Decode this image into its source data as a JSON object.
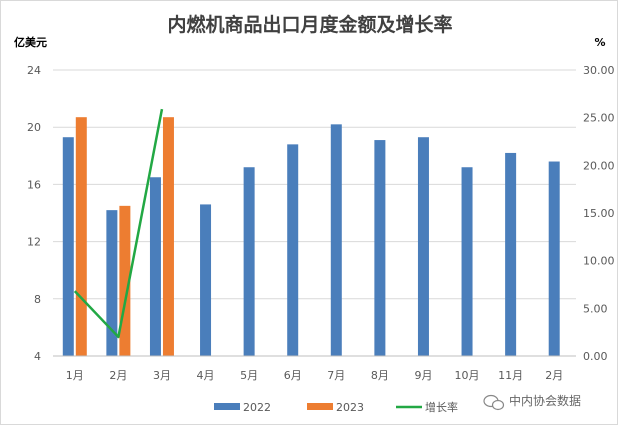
{
  "chart_data": {
    "type": "bar",
    "title": "内燃机商品出口月度金额及增长率",
    "y_left_unit": "亿美元",
    "y_right_unit": "%",
    "categories": [
      "1月",
      "2月",
      "3月",
      "4月",
      "5月",
      "6月",
      "7月",
      "8月",
      "9月",
      "10月",
      "11月",
      "2月"
    ],
    "ylim_left": [
      4,
      24
    ],
    "yticks_left": [
      "4",
      "8",
      "12",
      "16",
      "20",
      "24"
    ],
    "ylim_right": [
      0,
      30
    ],
    "yticks_right": [
      "0.00",
      "5.00",
      "10.00",
      "15.00",
      "20.00",
      "25.00",
      "30.00"
    ],
    "grid": true,
    "legend_position": "bottom",
    "series": [
      {
        "name": "2022",
        "kind": "bar",
        "axis": "left",
        "color": "#4a7ebb",
        "values": [
          19.3,
          14.2,
          16.5,
          14.6,
          17.2,
          18.8,
          20.2,
          19.1,
          19.3,
          17.2,
          18.2,
          17.6
        ]
      },
      {
        "name": "2023",
        "kind": "bar",
        "axis": "left",
        "color": "#ed7d31",
        "values": [
          20.7,
          14.5,
          20.7,
          null,
          null,
          null,
          null,
          null,
          null,
          null,
          null,
          null
        ]
      },
      {
        "name": "增长率",
        "kind": "line",
        "axis": "right",
        "color": "#22a844",
        "values": [
          6.8,
          2.0,
          25.9,
          null,
          null,
          null,
          null,
          null,
          null,
          null,
          null,
          null
        ]
      }
    ]
  },
  "watermark": {
    "icon": "wechat-icon",
    "text": "中内协会数据"
  }
}
